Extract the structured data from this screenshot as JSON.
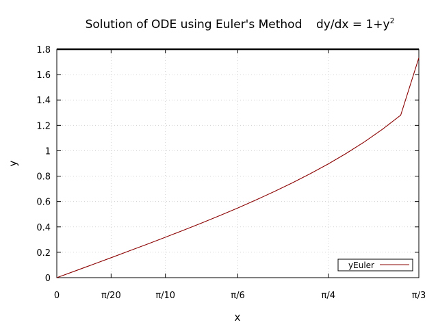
{
  "chart_data": {
    "type": "line",
    "title": "Solution of ODE using Euler's Method",
    "equation_prefix": "dy/dx = 1+y",
    "equation_exponent": "2",
    "xlabel": "x",
    "ylabel": "y",
    "xlim": [
      0,
      1.0472
    ],
    "ylim": [
      0,
      1.8
    ],
    "x_ticks": [
      {
        "value": 0,
        "label": "0"
      },
      {
        "value": 0.15708,
        "label": "π/20"
      },
      {
        "value": 0.31416,
        "label": "π/10"
      },
      {
        "value": 0.5236,
        "label": "π/6"
      },
      {
        "value": 0.7854,
        "label": "π/4"
      },
      {
        "value": 1.0472,
        "label": "π/3"
      }
    ],
    "y_ticks": [
      "0",
      "0.2",
      "0.4",
      "0.6",
      "0.8",
      "1",
      "1.2",
      "1.4",
      "1.6",
      "1.8"
    ],
    "y_tick_values": [
      0,
      0.2,
      0.4,
      0.6,
      0.8,
      1.0,
      1.2,
      1.4,
      1.6,
      1.8
    ],
    "grid": true,
    "legend_position": "bottom-right",
    "series": [
      {
        "name": "yEuler",
        "color": "#8b0000",
        "x": [
          0,
          0.05236,
          0.10472,
          0.15708,
          0.20944,
          0.2618,
          0.31416,
          0.36652,
          0.41888,
          0.47124,
          0.5236,
          0.57596,
          0.62832,
          0.68068,
          0.73304,
          0.7854,
          0.83776,
          0.89012,
          0.94248,
          0.99484,
          1.0472
        ],
        "y": [
          0,
          0.0524,
          0.1048,
          0.1575,
          0.2105,
          0.2641,
          0.3185,
          0.374,
          0.4307,
          0.489,
          0.5494,
          0.612,
          0.6775,
          0.7464,
          0.8193,
          0.897,
          0.9805,
          1.0711,
          1.1703,
          1.2805,
          1.732
        ]
      }
    ]
  }
}
